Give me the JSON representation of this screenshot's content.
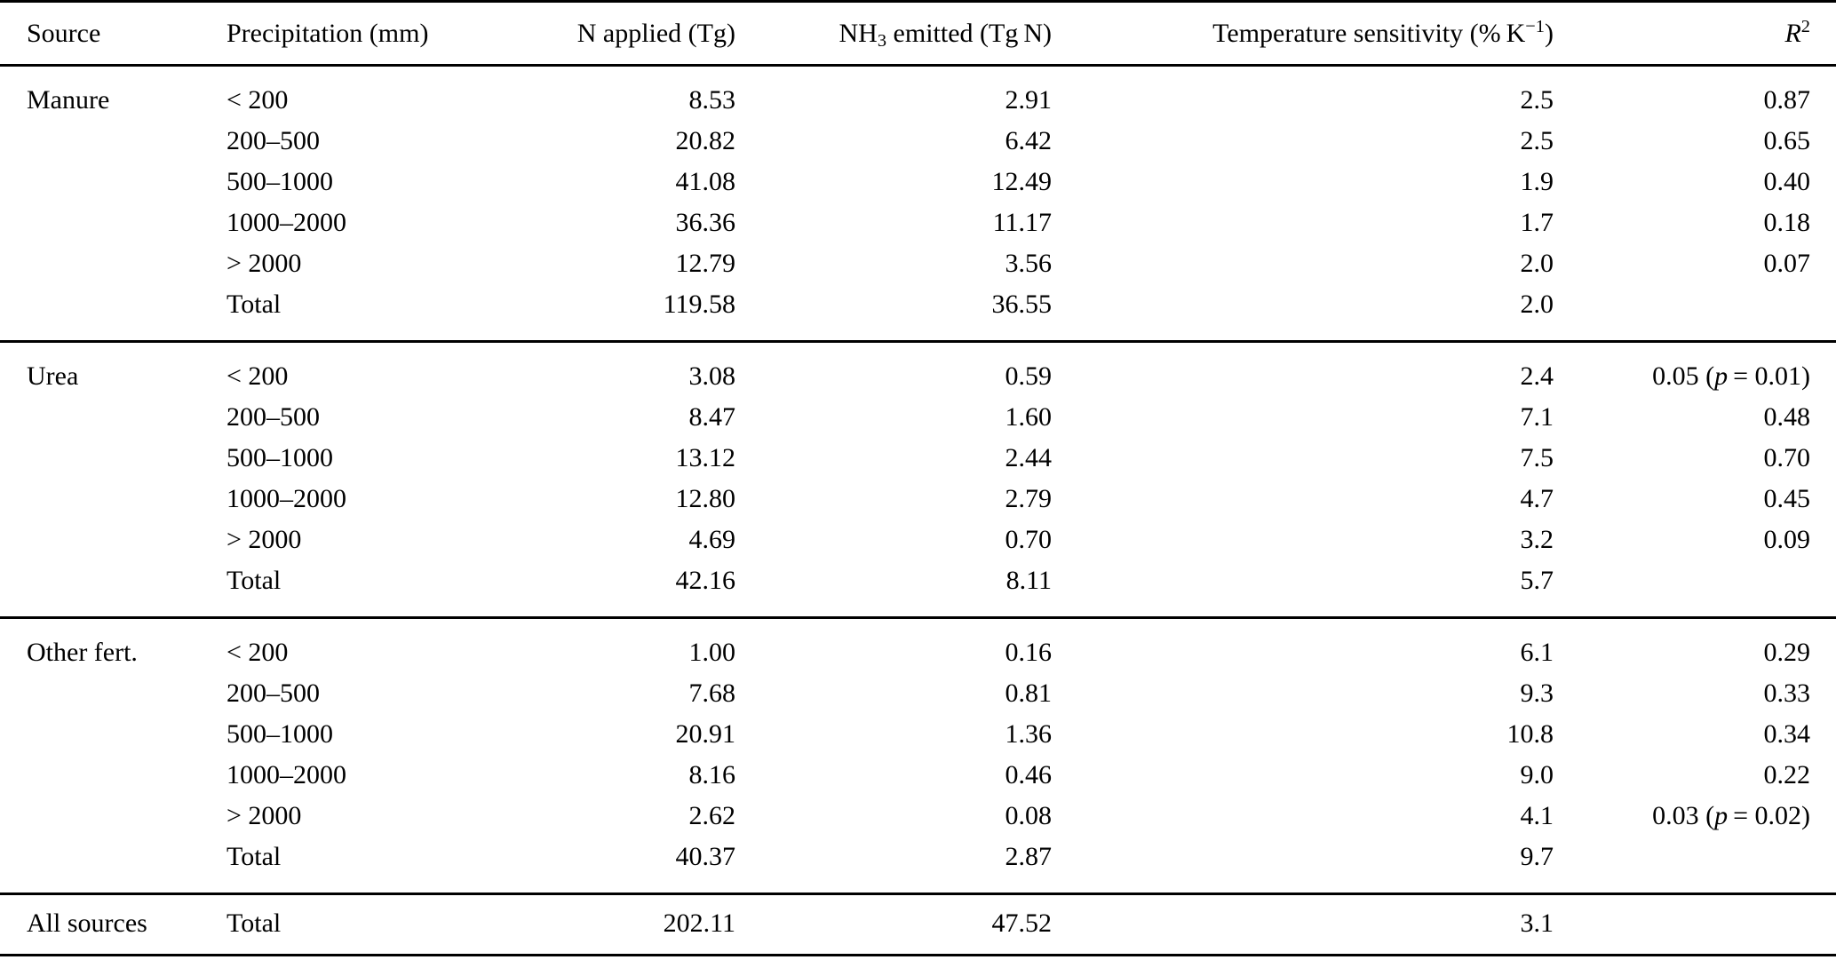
{
  "colors": {
    "text": "#000000",
    "background": "#ffffff",
    "rule": "#000000"
  },
  "table": {
    "columns": [
      {
        "label": "Source"
      },
      {
        "label": "Precipitation (mm)"
      },
      {
        "label": "N applied (Tg)"
      },
      {
        "pre": "NH",
        "sub": "3",
        "post": " emitted (Tg N)"
      },
      {
        "pre": "Temperature sensitivity (% K",
        "sup": "−1",
        "post": ")"
      },
      {
        "base": "R",
        "sup": "2"
      }
    ],
    "groups": [
      {
        "source": "Manure",
        "rows": [
          [
            "< 200",
            "8.53",
            "2.91",
            "2.5",
            "0.87"
          ],
          [
            "200–500",
            "20.82",
            "6.42",
            "2.5",
            "0.65"
          ],
          [
            "500–1000",
            "41.08",
            "12.49",
            "1.9",
            "0.40"
          ],
          [
            "1000–2000",
            "36.36",
            "11.17",
            "1.7",
            "0.18"
          ],
          [
            "> 2000",
            "12.79",
            "3.56",
            "2.0",
            "0.07"
          ],
          [
            "Total",
            "119.58",
            "36.55",
            "2.0",
            ""
          ]
        ]
      },
      {
        "source": "Urea",
        "rows": [
          [
            "< 200",
            "3.08",
            "0.59",
            "2.4",
            "0.05 (p = 0.01)"
          ],
          [
            "200–500",
            "8.47",
            "1.60",
            "7.1",
            "0.48"
          ],
          [
            "500–1000",
            "13.12",
            "2.44",
            "7.5",
            "0.70"
          ],
          [
            "1000–2000",
            "12.80",
            "2.79",
            "4.7",
            "0.45"
          ],
          [
            "> 2000",
            "4.69",
            "0.70",
            "3.2",
            "0.09"
          ],
          [
            "Total",
            "42.16",
            "8.11",
            "5.7",
            ""
          ]
        ]
      },
      {
        "source": "Other fert.",
        "rows": [
          [
            "< 200",
            "1.00",
            "0.16",
            "6.1",
            "0.29"
          ],
          [
            "200–500",
            "7.68",
            "0.81",
            "9.3",
            "0.33"
          ],
          [
            "500–1000",
            "20.91",
            "1.36",
            "10.8",
            "0.34"
          ],
          [
            "1000–2000",
            "8.16",
            "0.46",
            "9.0",
            "0.22"
          ],
          [
            "> 2000",
            "2.62",
            "0.08",
            "4.1",
            "0.03 (p = 0.02)"
          ],
          [
            "Total",
            "40.37",
            "2.87",
            "9.7",
            ""
          ]
        ]
      },
      {
        "source": "All sources",
        "rows": [
          [
            "Total",
            "202.11",
            "47.52",
            "3.1",
            ""
          ]
        ]
      }
    ]
  }
}
